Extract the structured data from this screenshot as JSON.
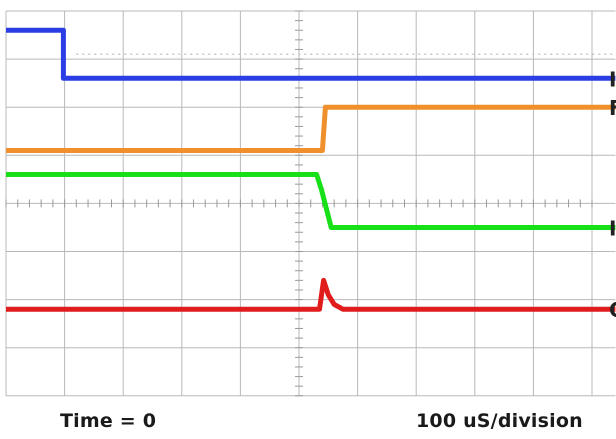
{
  "chart_data": {
    "type": "line",
    "title": "",
    "xlabel": "",
    "ylabel": "",
    "x_unit": "division",
    "xlim": [
      0,
      10.4
    ],
    "ylim": [
      0,
      8
    ],
    "grid": true,
    "horizontal_divisions": 10,
    "vertical_divisions": 8,
    "annotations": {
      "time_zero": "Time = 0",
      "timebase": "100 uS/division"
    },
    "series": [
      {
        "color": "#2b3ee6",
        "channel_marker": "I",
        "points": [
          [
            0,
            7.6
          ],
          [
            0.98,
            7.6
          ],
          [
            0.98,
            6.6
          ],
          [
            10.4,
            6.6
          ]
        ]
      },
      {
        "color": "#f0902c",
        "channel_marker": "F",
        "points": [
          [
            0,
            5.1
          ],
          [
            5.4,
            5.1
          ],
          [
            5.45,
            6.0
          ],
          [
            10.4,
            6.0
          ]
        ]
      },
      {
        "color": "#18e018",
        "channel_marker": "I",
        "points": [
          [
            0,
            4.6
          ],
          [
            5.3,
            4.6
          ],
          [
            5.38,
            4.3
          ],
          [
            5.55,
            3.5
          ],
          [
            10.4,
            3.5
          ]
        ]
      },
      {
        "color": "#e01c1c",
        "channel_marker": "C",
        "points": [
          [
            0,
            1.8
          ],
          [
            5.35,
            1.8
          ],
          [
            5.42,
            2.4
          ],
          [
            5.5,
            2.1
          ],
          [
            5.6,
            1.9
          ],
          [
            5.75,
            1.8
          ],
          [
            10.4,
            1.8
          ]
        ]
      }
    ]
  }
}
